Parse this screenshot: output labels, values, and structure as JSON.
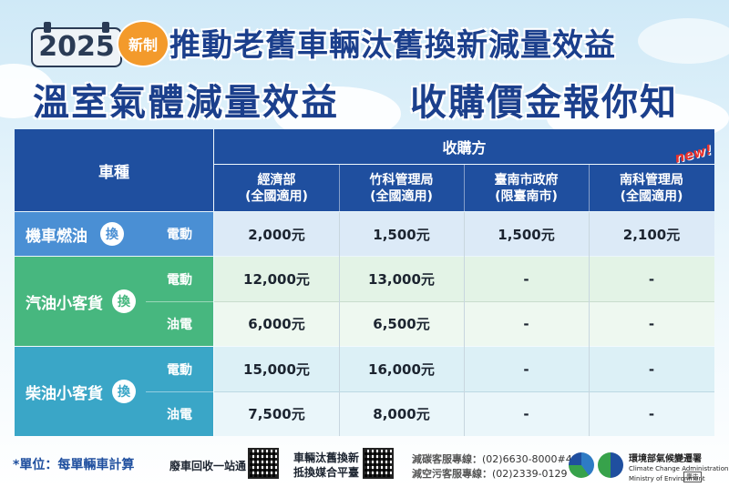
{
  "header": {
    "year": "2025",
    "new_badge": "新制",
    "title_line1": "推動老舊車輛汰舊換新減量效益",
    "title_line2a": "溫室氣體減量效益",
    "title_line2b": "收購價金報你知"
  },
  "table": {
    "vehicle_type_header": "車種",
    "buyer_header": "收購方",
    "new_label": "new!",
    "buyers": [
      {
        "name": "經濟部",
        "scope": "(全國適用)"
      },
      {
        "name": "竹科管理局",
        "scope": "(全國適用)"
      },
      {
        "name": "臺南市政府",
        "scope": "(限臺南市)"
      },
      {
        "name": "南科管理局",
        "scope": "(全國適用)"
      }
    ],
    "groups": [
      {
        "vehicle": "機車燃油",
        "swap": "換",
        "rows": [
          {
            "type": "電動",
            "values": [
              "2,000元",
              "1,500元",
              "1,500元",
              "2,100元"
            ]
          }
        ]
      },
      {
        "vehicle": "汽油小客貨",
        "swap": "換",
        "rows": [
          {
            "type": "電動",
            "values": [
              "12,000元",
              "13,000元",
              "-",
              "-"
            ]
          },
          {
            "type": "油電",
            "values": [
              "6,000元",
              "6,500元",
              "-",
              "-"
            ]
          }
        ]
      },
      {
        "vehicle": "柴油小客貨",
        "swap": "換",
        "rows": [
          {
            "type": "電動",
            "values": [
              "15,000元",
              "16,000元",
              "-",
              "-"
            ]
          },
          {
            "type": "油電",
            "values": [
              "7,500元",
              "8,000元",
              "-",
              "-"
            ]
          }
        ]
      }
    ]
  },
  "footer": {
    "unit_note": "*單位：每單輛車計算",
    "recycle_label": "廢車回收一站通",
    "platform_label_1": "車輛汰舊換新",
    "platform_label_2": "抵換媒合平臺",
    "hotline1_label": "減碳客服專線：",
    "hotline1_number": "(02)6630-8000#437",
    "hotline2_label": "減空污客服專線：",
    "hotline2_number": "(02)2339-0129",
    "agency_zh": "環境部氣候變遷署",
    "agency_en1": "Climate Change Administration",
    "agency_en2": "Ministry of Environment",
    "ad_tag": "廣告"
  },
  "colors": {
    "header_blue": "#1f4f9f",
    "moto_blue": "#4a8fd4",
    "gas_green": "#47b77f",
    "diesel_teal": "#3aa6c7",
    "title_blue": "#1b3f8c",
    "accent_orange": "#f39a2b",
    "new_red": "#e8322d"
  }
}
